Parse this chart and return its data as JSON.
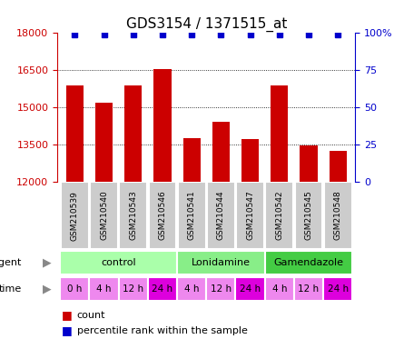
{
  "title": "GDS3154 / 1371515_at",
  "samples": [
    "GSM210539",
    "GSM210540",
    "GSM210543",
    "GSM210546",
    "GSM210541",
    "GSM210544",
    "GSM210547",
    "GSM210542",
    "GSM210545",
    "GSM210548"
  ],
  "counts": [
    15900,
    15200,
    15900,
    16550,
    13750,
    14400,
    13700,
    15900,
    13450,
    13250
  ],
  "percentile_ranks": [
    99,
    99,
    99,
    99,
    99,
    99,
    99,
    99,
    99,
    99
  ],
  "ylim_left": [
    12000,
    18000
  ],
  "ylim_right": [
    0,
    100
  ],
  "yticks_left": [
    12000,
    13500,
    15000,
    16500,
    18000
  ],
  "yticks_right": [
    0,
    25,
    50,
    75,
    100
  ],
  "bar_color": "#cc0000",
  "percentile_color": "#0000cc",
  "gridline_values": [
    13500,
    15000,
    16500
  ],
  "groups": [
    {
      "label": "control",
      "start": 0,
      "end": 4,
      "color": "#aaffaa"
    },
    {
      "label": "Lonidamine",
      "start": 4,
      "end": 7,
      "color": "#88ee88"
    },
    {
      "label": "Gamendazole",
      "start": 7,
      "end": 10,
      "color": "#44cc44"
    }
  ],
  "times": [
    "0 h",
    "4 h",
    "12 h",
    "24 h",
    "4 h",
    "12 h",
    "24 h",
    "4 h",
    "12 h",
    "24 h"
  ],
  "time_colors": [
    "#ee88ee",
    "#ee88ee",
    "#ee88ee",
    "#dd00dd",
    "#ee88ee",
    "#ee88ee",
    "#dd00dd",
    "#ee88ee",
    "#ee88ee",
    "#dd00dd"
  ],
  "legend_count_color": "#cc0000",
  "legend_percentile_color": "#0000cc",
  "sample_box_color": "#cccccc",
  "background_color": "#ffffff",
  "right_axis_color": "#0000cc",
  "left_axis_color": "#cc0000"
}
